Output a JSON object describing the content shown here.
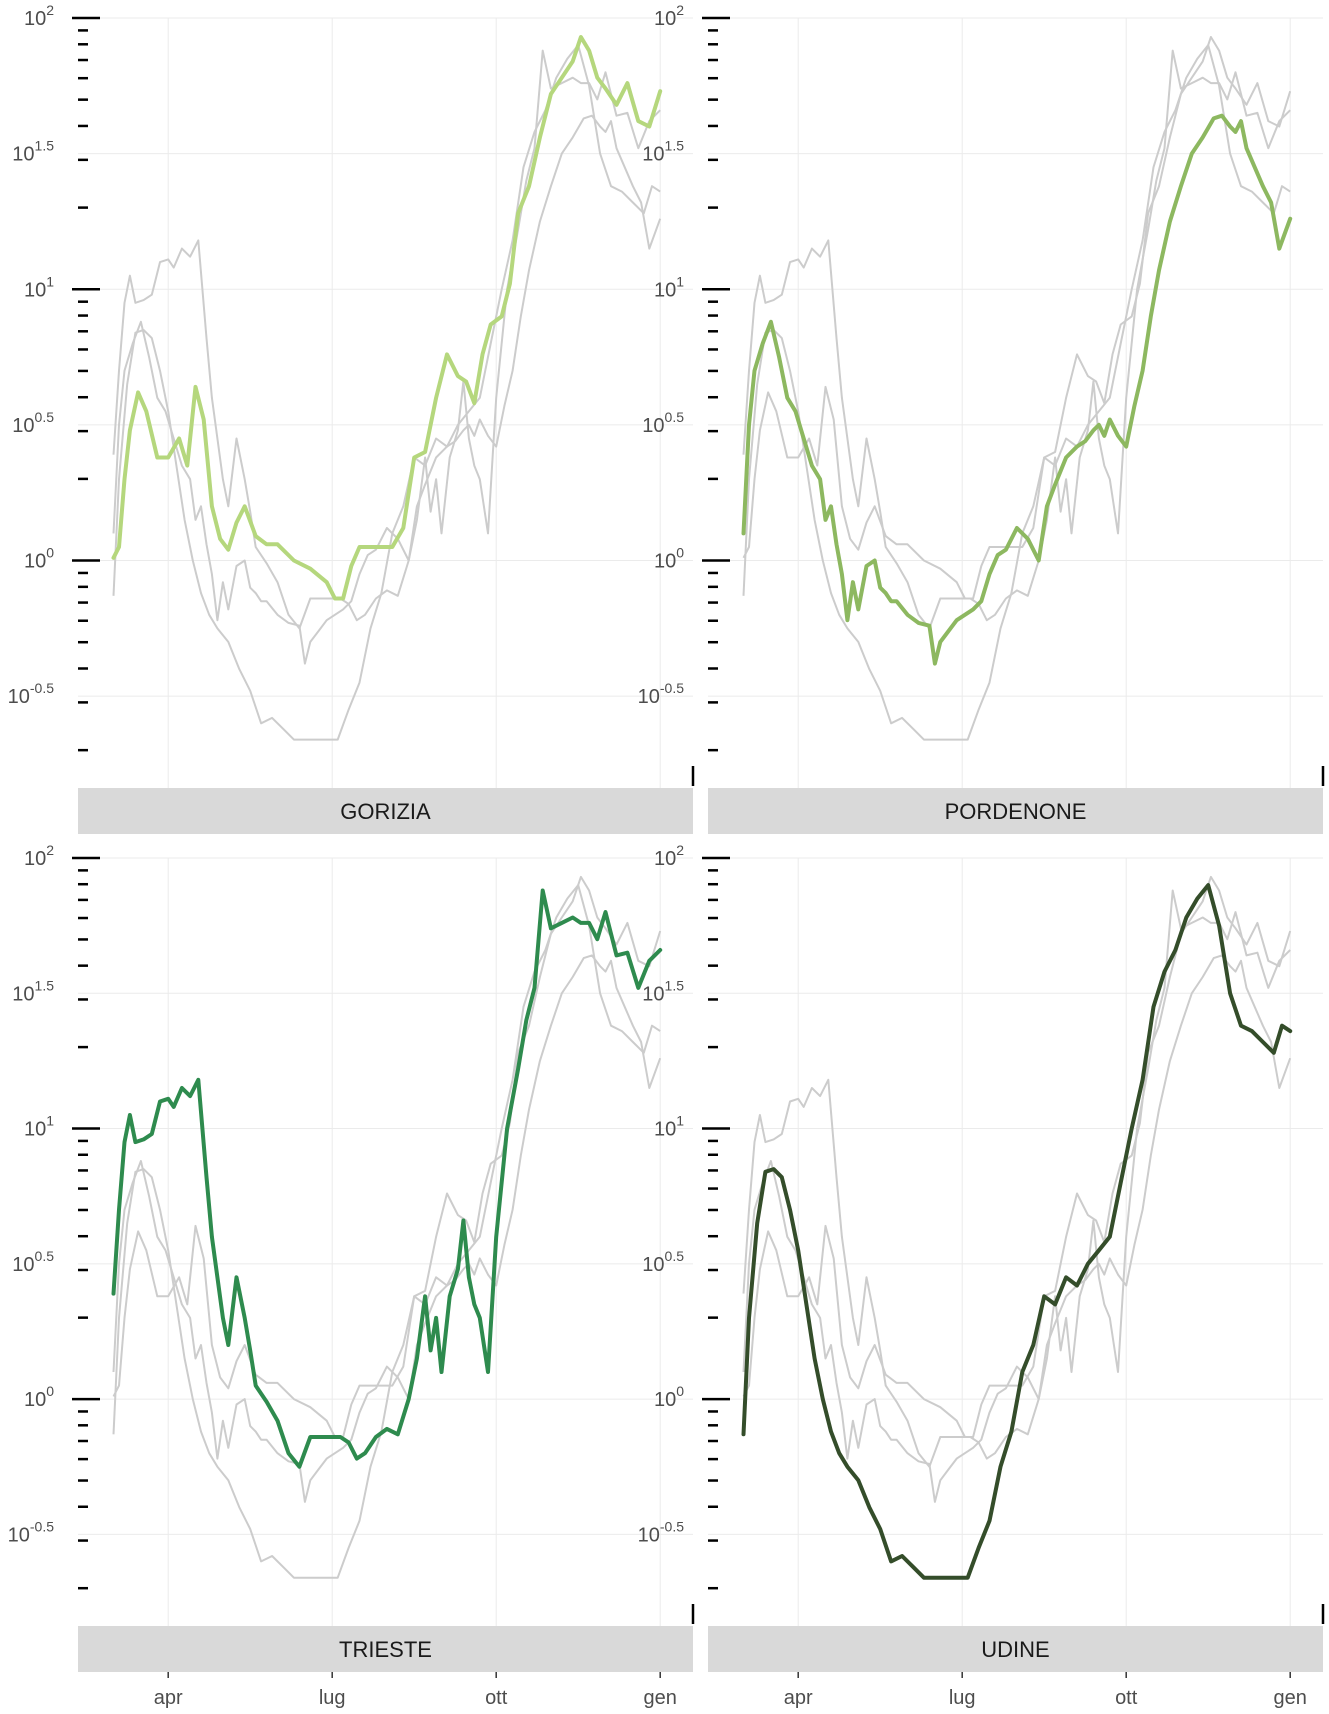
{
  "chart_data": {
    "type": "line",
    "layout": "facet-2x2",
    "yscale": "log10",
    "ylim": [
      -0.75,
      2.0
    ],
    "y_ticks": [
      {
        "value": 2,
        "base": "10",
        "exp": "2"
      },
      {
        "value": 1.5,
        "base": "10",
        "exp": "1.5"
      },
      {
        "value": 1,
        "base": "10",
        "exp": "1"
      },
      {
        "value": 0.5,
        "base": "10",
        "exp": "0.5"
      },
      {
        "value": 0,
        "base": "10",
        "exp": "0"
      },
      {
        "value": -0.5,
        "base": "10",
        "exp": "-0.5"
      }
    ],
    "x_ticks": [
      {
        "label": "apr",
        "value": 3.0
      },
      {
        "label": "lug",
        "value": 6.0
      },
      {
        "label": "ott",
        "value": 9.0
      },
      {
        "label": "gen",
        "value": 12.0
      }
    ],
    "xlim": [
      1.35,
      12.6
    ],
    "grid": true,
    "background_color": "#cccccc",
    "panels": [
      {
        "label": "GORIZIA",
        "color": "#b5d77d",
        "x": [
          2.0,
          2.1,
          2.2,
          2.3,
          2.45,
          2.6,
          2.8,
          3.0,
          3.2,
          3.35,
          3.5,
          3.65,
          3.8,
          3.95,
          4.1,
          4.25,
          4.4,
          4.6,
          4.8,
          5.0,
          5.3,
          5.6,
          5.9,
          6.05,
          6.2,
          6.35,
          6.5,
          6.7,
          6.9,
          7.1,
          7.3,
          7.5,
          7.7,
          7.9,
          8.1,
          8.3,
          8.45,
          8.6,
          8.75,
          8.9,
          9.1,
          9.25,
          9.4,
          9.6,
          9.8,
          10.0,
          10.2,
          10.4,
          10.55,
          10.7,
          10.85,
          11.0,
          11.2,
          11.4,
          11.6,
          11.8,
          12.0
        ],
        "y": [
          0.01,
          0.05,
          0.3,
          0.48,
          0.62,
          0.55,
          0.38,
          0.38,
          0.45,
          0.35,
          0.64,
          0.52,
          0.2,
          0.08,
          0.04,
          0.14,
          0.2,
          0.09,
          0.06,
          0.06,
          0.0,
          -0.03,
          -0.08,
          -0.14,
          -0.14,
          -0.02,
          0.05,
          0.05,
          0.05,
          0.05,
          0.12,
          0.38,
          0.4,
          0.6,
          0.76,
          0.68,
          0.66,
          0.58,
          0.76,
          0.87,
          0.9,
          1.02,
          1.28,
          1.38,
          1.56,
          1.72,
          1.78,
          1.84,
          1.93,
          1.88,
          1.78,
          1.74,
          1.68,
          1.76,
          1.62,
          1.6,
          1.73
        ]
      },
      {
        "label": "PORDENONE",
        "color": "#8db860",
        "x": [
          2.0,
          2.1,
          2.2,
          2.35,
          2.5,
          2.65,
          2.8,
          2.95,
          3.1,
          3.25,
          3.4,
          3.5,
          3.6,
          3.7,
          3.8,
          3.9,
          4.0,
          4.1,
          4.25,
          4.4,
          4.5,
          4.6,
          4.7,
          4.8,
          5.0,
          5.2,
          5.4,
          5.5,
          5.6,
          5.75,
          5.9,
          6.05,
          6.2,
          6.35,
          6.5,
          6.65,
          6.8,
          7.0,
          7.2,
          7.4,
          7.55,
          7.7,
          7.9,
          8.1,
          8.25,
          8.4,
          8.5,
          8.6,
          8.7,
          8.85,
          9.0,
          9.15,
          9.3,
          9.45,
          9.6,
          9.8,
          10.0,
          10.2,
          10.4,
          10.6,
          10.75,
          10.9,
          11.0,
          11.1,
          11.2,
          11.35,
          11.5,
          11.65,
          11.8,
          12.0
        ],
        "y": [
          0.1,
          0.5,
          0.7,
          0.8,
          0.88,
          0.75,
          0.6,
          0.55,
          0.45,
          0.35,
          0.3,
          0.15,
          0.2,
          0.06,
          -0.05,
          -0.22,
          -0.08,
          -0.18,
          -0.02,
          0.0,
          -0.1,
          -0.12,
          -0.15,
          -0.15,
          -0.2,
          -0.23,
          -0.24,
          -0.38,
          -0.3,
          -0.26,
          -0.22,
          -0.2,
          -0.18,
          -0.15,
          -0.05,
          0.02,
          0.04,
          0.12,
          0.08,
          0.0,
          0.2,
          0.28,
          0.38,
          0.42,
          0.44,
          0.48,
          0.5,
          0.46,
          0.52,
          0.46,
          0.42,
          0.57,
          0.7,
          0.9,
          1.07,
          1.25,
          1.38,
          1.5,
          1.56,
          1.63,
          1.64,
          1.6,
          1.58,
          1.62,
          1.52,
          1.45,
          1.38,
          1.32,
          1.15,
          1.26
        ]
      },
      {
        "label": "TRIESTE",
        "color": "#2e8b4e",
        "x": [
          2.0,
          2.1,
          2.2,
          2.3,
          2.4,
          2.55,
          2.7,
          2.85,
          3.0,
          3.1,
          3.25,
          3.4,
          3.55,
          3.7,
          3.8,
          3.9,
          4.0,
          4.1,
          4.25,
          4.4,
          4.5,
          4.6,
          4.8,
          5.0,
          5.2,
          5.4,
          5.6,
          5.8,
          6.0,
          6.15,
          6.3,
          6.45,
          6.6,
          6.8,
          7.0,
          7.2,
          7.4,
          7.55,
          7.7,
          7.8,
          7.9,
          8.0,
          8.15,
          8.3,
          8.4,
          8.5,
          8.6,
          8.7,
          8.85,
          9.0,
          9.2,
          9.4,
          9.55,
          9.7,
          9.85,
          10.0,
          10.2,
          10.4,
          10.55,
          10.7,
          10.85,
          11.0,
          11.2,
          11.4,
          11.6,
          11.8,
          12.0
        ],
        "y": [
          0.39,
          0.7,
          0.95,
          1.05,
          0.95,
          0.96,
          0.98,
          1.1,
          1.11,
          1.08,
          1.15,
          1.12,
          1.18,
          0.82,
          0.6,
          0.45,
          0.3,
          0.2,
          0.45,
          0.3,
          0.18,
          0.05,
          -0.01,
          -0.08,
          -0.2,
          -0.25,
          -0.14,
          -0.14,
          -0.14,
          -0.14,
          -0.16,
          -0.22,
          -0.2,
          -0.14,
          -0.11,
          -0.13,
          0.0,
          0.15,
          0.38,
          0.18,
          0.3,
          0.1,
          0.38,
          0.48,
          0.66,
          0.45,
          0.35,
          0.3,
          0.1,
          0.6,
          1.0,
          1.22,
          1.4,
          1.52,
          1.88,
          1.74,
          1.76,
          1.78,
          1.76,
          1.76,
          1.7,
          1.8,
          1.64,
          1.65,
          1.52,
          1.62,
          1.66
        ]
      },
      {
        "label": "UDINE",
        "color": "#344d2a",
        "x": [
          2.0,
          2.1,
          2.25,
          2.4,
          2.55,
          2.7,
          2.85,
          3.0,
          3.15,
          3.3,
          3.45,
          3.6,
          3.75,
          3.9,
          4.1,
          4.3,
          4.5,
          4.7,
          4.9,
          5.1,
          5.3,
          5.5,
          5.7,
          5.9,
          6.1,
          6.3,
          6.5,
          6.7,
          6.9,
          7.1,
          7.3,
          7.5,
          7.7,
          7.9,
          8.1,
          8.3,
          8.5,
          8.7,
          8.9,
          9.1,
          9.3,
          9.5,
          9.7,
          9.9,
          10.1,
          10.3,
          10.5,
          10.7,
          10.9,
          11.1,
          11.3,
          11.5,
          11.7,
          11.85,
          12.0
        ],
        "y": [
          -0.13,
          0.3,
          0.65,
          0.84,
          0.85,
          0.82,
          0.7,
          0.55,
          0.35,
          0.15,
          0.0,
          -0.12,
          -0.2,
          -0.25,
          -0.3,
          -0.4,
          -0.48,
          -0.6,
          -0.58,
          -0.62,
          -0.66,
          -0.66,
          -0.66,
          -0.66,
          -0.66,
          -0.55,
          -0.45,
          -0.25,
          -0.12,
          0.1,
          0.2,
          0.38,
          0.35,
          0.45,
          0.42,
          0.5,
          0.55,
          0.6,
          0.8,
          1.0,
          1.18,
          1.45,
          1.58,
          1.66,
          1.78,
          1.85,
          1.9,
          1.75,
          1.5,
          1.38,
          1.36,
          1.32,
          1.28,
          1.38,
          1.36
        ]
      }
    ]
  }
}
